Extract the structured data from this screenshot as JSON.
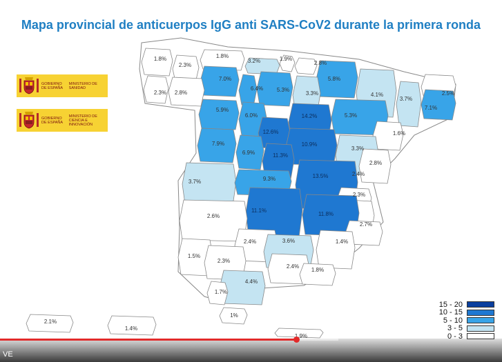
{
  "title": "Mapa provincial de anticuerpos IgG anti SARS-CoV2 durante la primera ronda",
  "logos": [
    {
      "government": "GOBIERNO DE ESPAÑA",
      "ministry": "MINISTERIO DE SANIDAD",
      "icon": "spain-coat-of-arms"
    },
    {
      "government": "GOBIERNO DE ESPAÑA",
      "ministry": "MINISTERIO DE CIENCIA E INNOVACIÓN",
      "icon": "spain-coat-of-arms"
    }
  ],
  "colors": {
    "band_15_20": "#0a3f9e",
    "band_10_15": "#1f78d1",
    "band_5_10": "#38a4e8",
    "band_3_5": "#c4e4f2",
    "band_0_3": "#ffffff",
    "outline": "#888888",
    "title": "#1f7fc3"
  },
  "legend": [
    {
      "label": "15 - 20",
      "band": "band_15_20"
    },
    {
      "label": "10 - 15",
      "band": "band_10_15"
    },
    {
      "label": "5 - 10",
      "band": "band_5_10"
    },
    {
      "label": "3 - 5",
      "band": "band_3_5"
    },
    {
      "label": "0 - 3",
      "band": "band_0_3"
    }
  ],
  "provinces": [
    {
      "label": "1.8%",
      "value": 1.8,
      "band": "band_0_3"
    },
    {
      "label": "2.3%",
      "value": 2.3,
      "band": "band_0_3"
    },
    {
      "label": "1.8%",
      "value": 1.8,
      "band": "band_0_3"
    },
    {
      "label": "3.2%",
      "value": 3.2,
      "band": "band_3_5"
    },
    {
      "label": "1.9%",
      "value": 1.9,
      "band": "band_0_3"
    },
    {
      "label": "2.8%",
      "value": 2.8,
      "band": "band_0_3"
    },
    {
      "label": "2.3%",
      "value": 2.3,
      "band": "band_0_3"
    },
    {
      "label": "7.0%",
      "value": 7.0,
      "band": "band_5_10"
    },
    {
      "label": "6.4%",
      "value": 6.4,
      "band": "band_5_10"
    },
    {
      "label": "5.3%",
      "value": 5.3,
      "band": "band_5_10"
    },
    {
      "label": "5.8%",
      "value": 5.8,
      "band": "band_5_10"
    },
    {
      "label": "2.8%",
      "value": 2.8,
      "band": "band_0_3"
    },
    {
      "label": "3.3%",
      "value": 3.3,
      "band": "band_3_5"
    },
    {
      "label": "4.1%",
      "value": 4.1,
      "band": "band_3_5"
    },
    {
      "label": "3.7%",
      "value": 3.7,
      "band": "band_3_5"
    },
    {
      "label": "2.5%",
      "value": 2.5,
      "band": "band_0_3"
    },
    {
      "label": "7.1%",
      "value": 7.1,
      "band": "band_5_10"
    },
    {
      "label": "5.9%",
      "value": 5.9,
      "band": "band_5_10"
    },
    {
      "label": "6.0%",
      "value": 6.0,
      "band": "band_5_10"
    },
    {
      "label": "14.2%",
      "value": 14.2,
      "band": "band_10_15"
    },
    {
      "label": "5.3%",
      "value": 5.3,
      "band": "band_5_10"
    },
    {
      "label": "12.6%",
      "value": 12.6,
      "band": "band_10_15"
    },
    {
      "label": "1.6%",
      "value": 1.6,
      "band": "band_0_3"
    },
    {
      "label": "7.9%",
      "value": 7.9,
      "band": "band_5_10"
    },
    {
      "label": "6.9%",
      "value": 6.9,
      "band": "band_5_10"
    },
    {
      "label": "10.9%",
      "value": 10.9,
      "band": "band_10_15"
    },
    {
      "label": "11.3%",
      "value": 11.3,
      "band": "band_10_15"
    },
    {
      "label": "3.3%",
      "value": 3.3,
      "band": "band_3_5"
    },
    {
      "label": "2.8%",
      "value": 2.8,
      "band": "band_0_3"
    },
    {
      "label": "3.7%",
      "value": 3.7,
      "band": "band_3_5"
    },
    {
      "label": "9.3%",
      "value": 9.3,
      "band": "band_5_10"
    },
    {
      "label": "13.5%",
      "value": 13.5,
      "band": "band_10_15"
    },
    {
      "label": "2.4%",
      "value": 2.4,
      "band": "band_0_3"
    },
    {
      "label": "2.3%",
      "value": 2.3,
      "band": "band_0_3"
    },
    {
      "label": "11.1%",
      "value": 11.1,
      "band": "band_10_15"
    },
    {
      "label": "11.8%",
      "value": 11.8,
      "band": "band_10_15"
    },
    {
      "label": "2.6%",
      "value": 2.6,
      "band": "band_0_3"
    },
    {
      "label": "2.7%",
      "value": 2.7,
      "band": "band_0_3"
    },
    {
      "label": "2.4%",
      "value": 2.4,
      "band": "band_0_3"
    },
    {
      "label": "3.6%",
      "value": 3.6,
      "band": "band_3_5"
    },
    {
      "label": "1.4%",
      "value": 1.4,
      "band": "band_0_3"
    },
    {
      "label": "1.5%",
      "value": 1.5,
      "band": "band_0_3"
    },
    {
      "label": "2.3%",
      "value": 2.3,
      "band": "band_0_3"
    },
    {
      "label": "2.4%",
      "value": 2.4,
      "band": "band_0_3"
    },
    {
      "label": "1.8%",
      "value": 1.8,
      "band": "band_0_3"
    },
    {
      "label": "4.4%",
      "value": 4.4,
      "band": "band_3_5"
    },
    {
      "label": "1.7%",
      "value": 1.7,
      "band": "band_0_3"
    },
    {
      "label": "1%",
      "value": 1.0,
      "band": "band_0_3"
    },
    {
      "label": "2.1%",
      "value": 2.1,
      "band": "band_0_3"
    },
    {
      "label": "1.4%",
      "value": 1.4,
      "band": "band_0_3"
    },
    {
      "label": "1.9%",
      "value": 1.9,
      "band": "band_0_3"
    }
  ],
  "player": {
    "label": "VE",
    "progress": 0.59
  }
}
